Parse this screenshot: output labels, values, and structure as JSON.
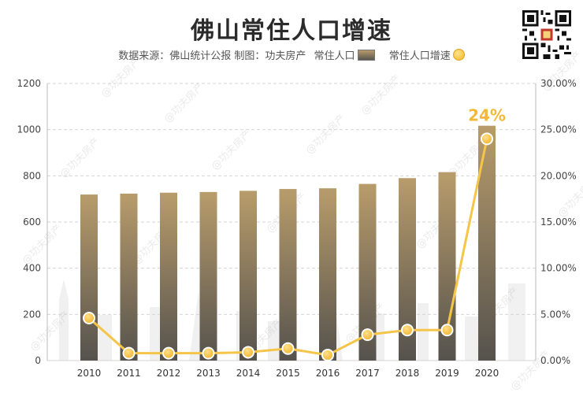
{
  "header": {
    "title": "佛山常住人口增速",
    "source_text": "数据来源：佛山统计公报  制图：功夫房产",
    "legend_bar_label": "常住人口",
    "legend_line_label": "常住人口增速"
  },
  "watermark_text": "@功夫房产",
  "chart_data": {
    "type": "bar",
    "title": "佛山常住人口增速",
    "categories": [
      "2010",
      "2011",
      "2012",
      "2013",
      "2014",
      "2015",
      "2016",
      "2017",
      "2018",
      "2019",
      "2020"
    ],
    "series": [
      {
        "name": "常住人口",
        "type": "bar",
        "axis": "left",
        "values": [
          719,
          723,
          727,
          730,
          735,
          743,
          746,
          765,
          790,
          816,
          1017
        ]
      },
      {
        "name": "常住人口增速",
        "type": "line",
        "axis": "right",
        "values": [
          4.6,
          0.8,
          0.8,
          0.8,
          0.9,
          1.3,
          0.6,
          2.8,
          3.3,
          3.3,
          24.0
        ]
      }
    ],
    "left_axis": {
      "ylim": [
        0,
        1200
      ],
      "ticks": [
        0,
        200,
        400,
        600,
        800,
        1000,
        1200
      ]
    },
    "right_axis": {
      "ylim": [
        0,
        30
      ],
      "ticks": [
        "0.00%",
        "5.00%",
        "10.00%",
        "15.00%",
        "20.00%",
        "25.00%",
        "30.00%"
      ]
    },
    "annotation": {
      "text": "24%",
      "category": "2020"
    },
    "grid": true,
    "colors": {
      "bar_top": "#b89c6b",
      "bar_bottom": "#55524d",
      "line": "#f5c549",
      "point": "#f2b62e",
      "annotation": "#f0b93a",
      "grid": "#d5d5d5"
    }
  }
}
